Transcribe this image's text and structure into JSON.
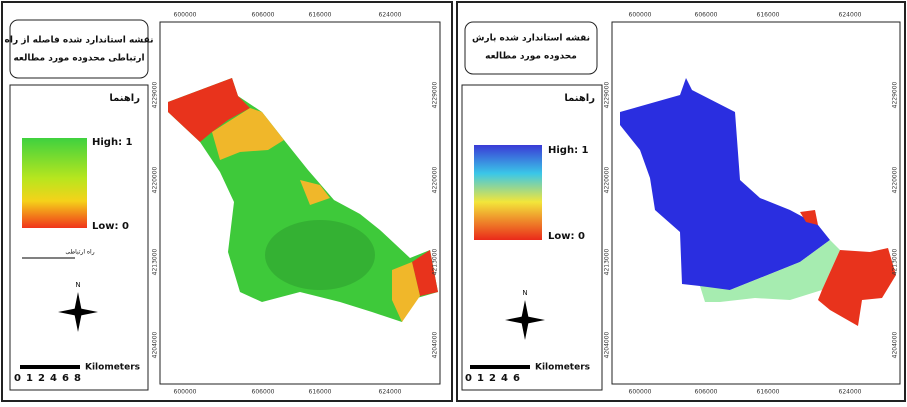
{
  "panels": [
    {
      "title": [
        "نقشه استاندارد شده فاصله از راه",
        "ارتباطی محدوده مورد مطالعه"
      ],
      "legend_title": "راهنما",
      "high": "High: 1",
      "low": "Low: 0",
      "line_label": "راه ارتباطی",
      "north": "N",
      "scale_unit": "Kilometers",
      "scale_labels": [
        "0",
        "1",
        "2",
        "4",
        "6",
        "8"
      ],
      "x_coords": [
        "600000",
        "606000",
        "616000",
        "624000"
      ],
      "y_coords": [
        "4229000",
        "4220000",
        "4213000",
        "4204000"
      ]
    },
    {
      "title": [
        "نقشه استاندارد شده بارش",
        "محدوده مورد مطالعه"
      ],
      "legend_title": "راهنما",
      "high": "High: 1",
      "low": "Low: 0",
      "north": "N",
      "scale_unit": "Kilometers",
      "scale_labels": [
        "0",
        "1",
        "2",
        "4",
        "6"
      ],
      "x_coords": [
        "600000",
        "606000",
        "616000",
        "624000"
      ],
      "y_coords": [
        "4229000",
        "4220000",
        "4213000",
        "4204000"
      ]
    }
  ]
}
